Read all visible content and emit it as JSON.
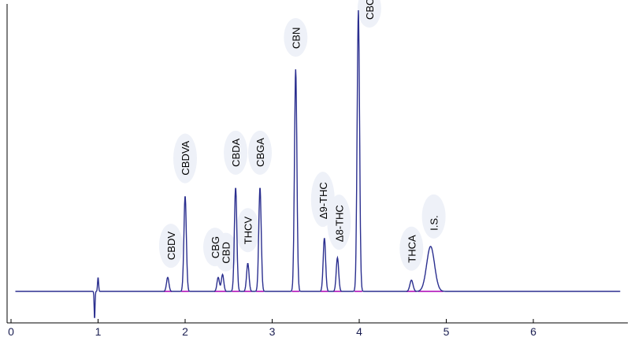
{
  "colors": {
    "trace": "#2b2f8f",
    "integration_marks": "#c040c8",
    "axis": "#000000",
    "tick_text": "#1b1f52"
  },
  "chart_data": {
    "type": "line",
    "title": "",
    "xlabel": "",
    "ylabel": "",
    "xlim": [
      0,
      7
    ],
    "ylim": [
      0,
      100
    ],
    "x_ticks": [
      "0",
      "1",
      "2",
      "3",
      "4",
      "5",
      "6"
    ],
    "grid": false,
    "legend": "none",
    "peaks": [
      {
        "label": "CBDV",
        "rt": 1.8,
        "height": 5
      },
      {
        "label": "CBDVA",
        "rt": 2.0,
        "height": 34
      },
      {
        "label": "CBG",
        "rt": 2.38,
        "height": 5
      },
      {
        "label": "CBD",
        "rt": 2.43,
        "height": 6
      },
      {
        "label": "CBDA",
        "rt": 2.58,
        "height": 37
      },
      {
        "label": "THCV",
        "rt": 2.72,
        "height": 10
      },
      {
        "label": "CBGA",
        "rt": 2.86,
        "height": 37
      },
      {
        "label": "CBN",
        "rt": 3.27,
        "height": 79
      },
      {
        "label": "Δ9-THC",
        "rt": 3.6,
        "height": 19
      },
      {
        "label": "Δ8-THC",
        "rt": 3.75,
        "height": 12
      },
      {
        "label": "CBC",
        "rt": 3.99,
        "height": 100
      },
      {
        "label": "THCA",
        "rt": 4.6,
        "height": 4
      },
      {
        "label": "I.S.",
        "rt": 4.82,
        "height": 16
      }
    ]
  }
}
